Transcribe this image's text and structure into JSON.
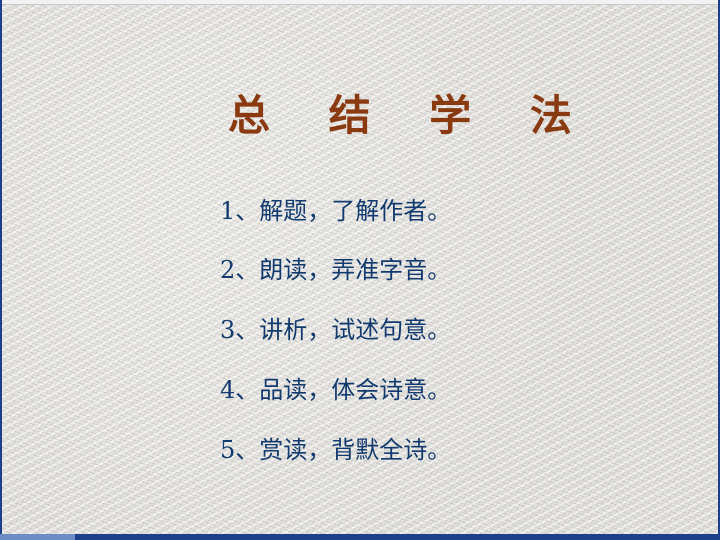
{
  "slide": {
    "title": "总 结 学 法",
    "items": [
      "1、解题，了解作者。",
      "2、朗读，弄准字音。",
      "3、讲析，试述句意。",
      "4、品读，体会诗意。",
      "5、赏读，背默全诗。"
    ]
  },
  "colors": {
    "title": "#8a3a10",
    "text": "#123a6f",
    "frame": "#1c3f8c",
    "background": "#e6e4df"
  }
}
